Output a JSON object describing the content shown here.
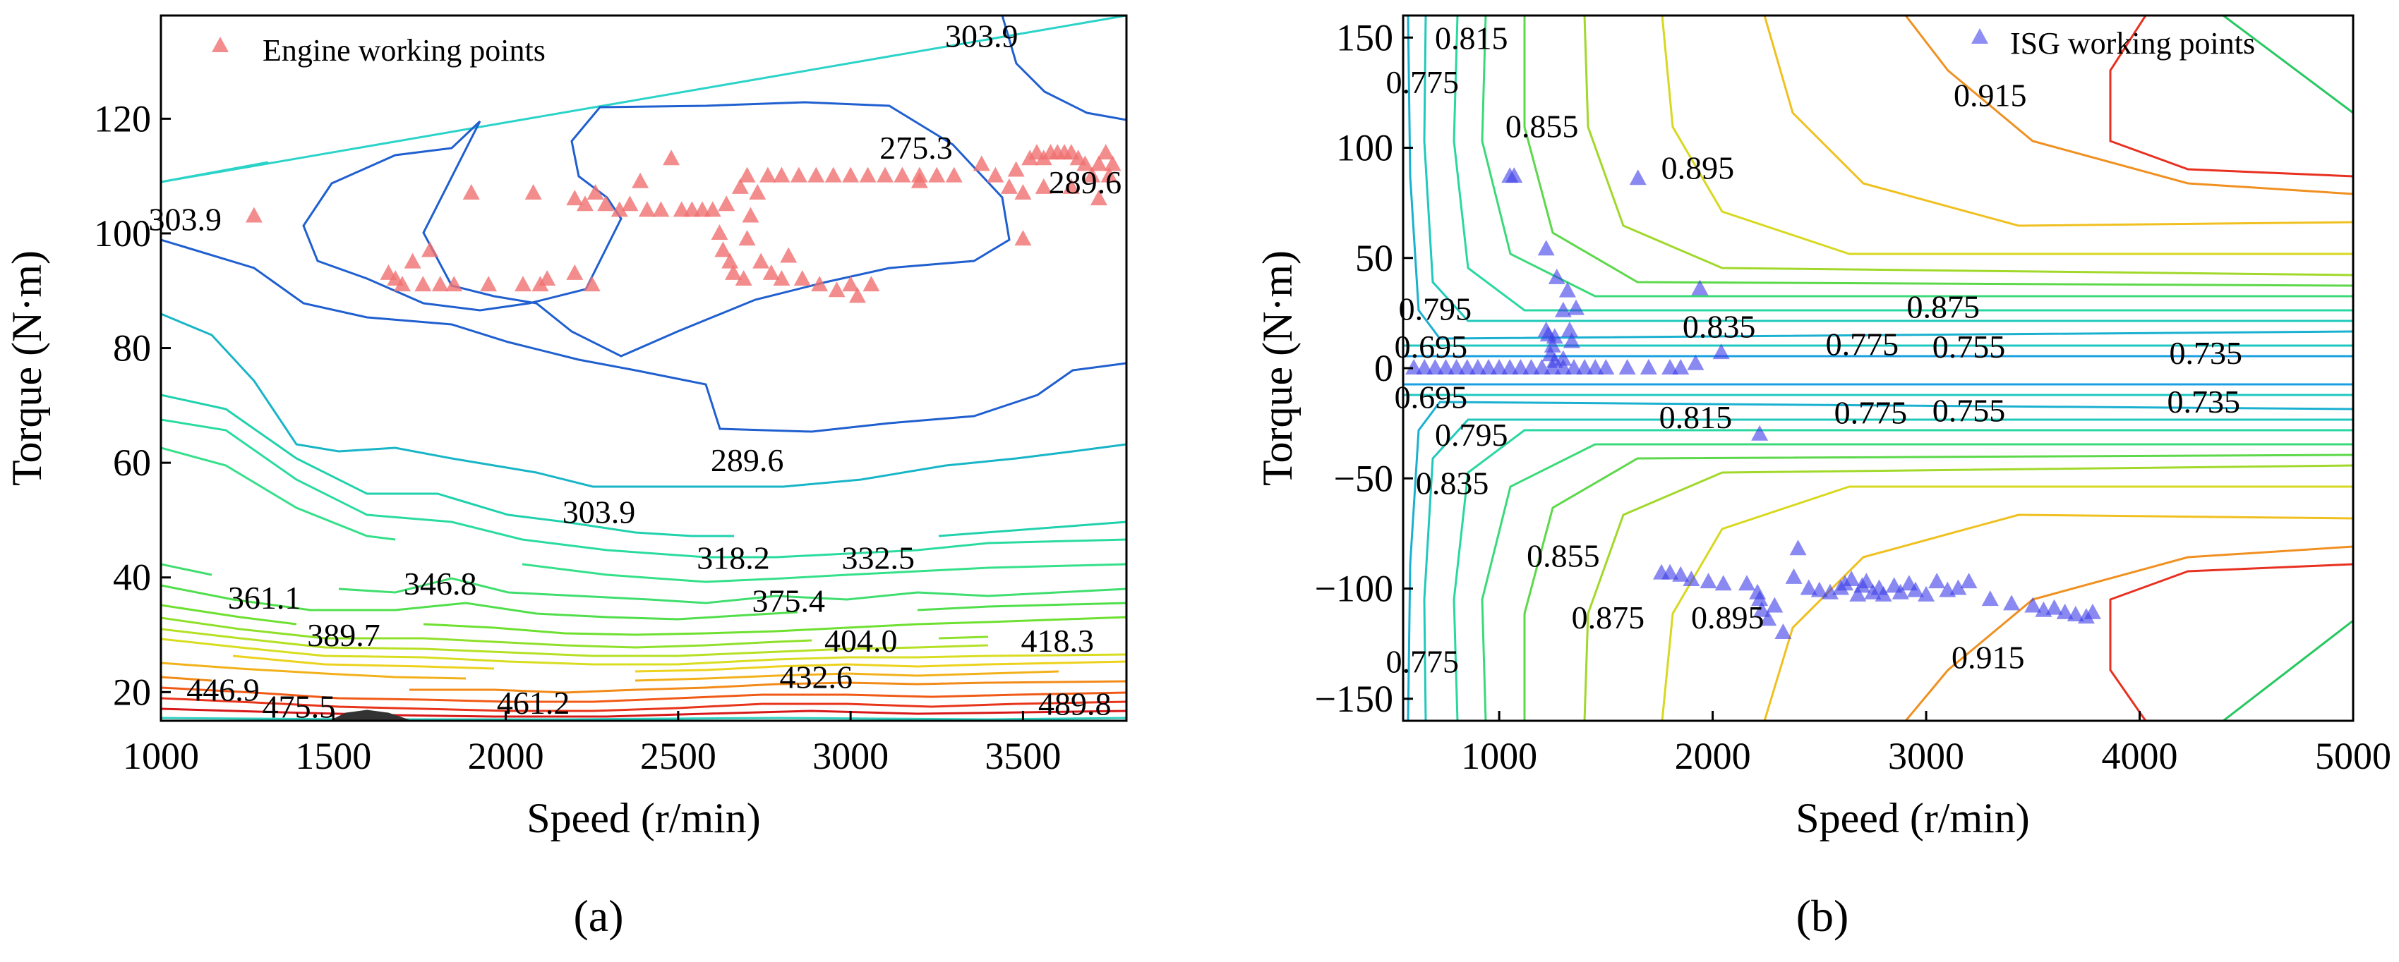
{
  "chart_data": [
    {
      "panel": "(a)",
      "type": "contour+scatter",
      "xlabel": "Speed (r/min)",
      "ylabel": "Torque (N·m)",
      "xlim": [
        1000,
        3800
      ],
      "ylim": [
        15,
        138
      ],
      "xticks": [
        1000,
        1500,
        2000,
        2500,
        3000,
        3500
      ],
      "yticks": [
        20,
        40,
        60,
        80,
        100,
        120
      ],
      "legend": {
        "label": "Engine working points",
        "position": "top-left",
        "marker": "triangle",
        "color": "#f07070"
      },
      "contour_levels": [
        "275.3",
        "289.6",
        "303.9",
        "318.2",
        "332.5",
        "346.8",
        "361.1",
        "375.4",
        "389.7",
        "404.0",
        "418.3",
        "432.6",
        "446.9",
        "461.2",
        "475.5",
        "489.8"
      ],
      "contour_labels": [
        {
          "text": "303.9",
          "x": 3380,
          "y": 134.5
        },
        {
          "text": "275.3",
          "x": 3190,
          "y": 115
        },
        {
          "text": "289.6",
          "x": 3680,
          "y": 109
        },
        {
          "text": "303.9",
          "x": 1070,
          "y": 102.5
        },
        {
          "text": "289.6",
          "x": 2700,
          "y": 60.5
        },
        {
          "text": "303.9",
          "x": 2270,
          "y": 51.5
        },
        {
          "text": "318.2",
          "x": 2660,
          "y": 43.5
        },
        {
          "text": "332.5",
          "x": 3080,
          "y": 43.5
        },
        {
          "text": "361.1",
          "x": 1300,
          "y": 36.5
        },
        {
          "text": "346.8",
          "x": 1810,
          "y": 39
        },
        {
          "text": "375.4",
          "x": 2820,
          "y": 36
        },
        {
          "text": "389.7",
          "x": 1530,
          "y": 30
        },
        {
          "text": "404.0",
          "x": 3030,
          "y": 29
        },
        {
          "text": "418.3",
          "x": 3600,
          "y": 29
        },
        {
          "text": "432.6",
          "x": 2900,
          "y": 22.7
        },
        {
          "text": "446.9",
          "x": 1180,
          "y": 20.5
        },
        {
          "text": "475.5",
          "x": 1400,
          "y": 17.5
        },
        {
          "text": "461.2",
          "x": 2080,
          "y": 18.2
        },
        {
          "text": "489.8",
          "x": 3650,
          "y": 18
        }
      ],
      "series": [
        {
          "name": "Engine working points",
          "points": [
            [
              1270,
              103
            ],
            [
              1660,
              93
            ],
            [
              1680,
              92
            ],
            [
              1700,
              91
            ],
            [
              1730,
              95
            ],
            [
              1760,
              91
            ],
            [
              1780,
              97
            ],
            [
              1810,
              91
            ],
            [
              1850,
              91
            ],
            [
              1900,
              107
            ],
            [
              1950,
              91
            ],
            [
              2050,
              91
            ],
            [
              2100,
              91
            ],
            [
              2080,
              107
            ],
            [
              2120,
              92
            ],
            [
              2200,
              93
            ],
            [
              2250,
              91
            ],
            [
              2200,
              106
            ],
            [
              2230,
              105
            ],
            [
              2260,
              107
            ],
            [
              2290,
              105
            ],
            [
              2330,
              104
            ],
            [
              2360,
              105
            ],
            [
              2390,
              109
            ],
            [
              2410,
              104
            ],
            [
              2450,
              104
            ],
            [
              2480,
              113
            ],
            [
              2510,
              104
            ],
            [
              2540,
              104
            ],
            [
              2570,
              104
            ],
            [
              2600,
              104
            ],
            [
              2640,
              105
            ],
            [
              2620,
              100
            ],
            [
              2630,
              97
            ],
            [
              2650,
              95
            ],
            [
              2660,
              93
            ],
            [
              2690,
              92
            ],
            [
              2700,
              99
            ],
            [
              2710,
              103
            ],
            [
              2740,
              95
            ],
            [
              2770,
              93
            ],
            [
              2800,
              92
            ],
            [
              2820,
              96
            ],
            [
              2860,
              92
            ],
            [
              2910,
              91
            ],
            [
              2960,
              90
            ],
            [
              3000,
              91
            ],
            [
              3020,
              89
            ],
            [
              3060,
              91
            ],
            [
              2680,
              108
            ],
            [
              2700,
              110
            ],
            [
              2730,
              107
            ],
            [
              2760,
              110
            ],
            [
              2800,
              110
            ],
            [
              2850,
              110
            ],
            [
              2900,
              110
            ],
            [
              2950,
              110
            ],
            [
              3000,
              110
            ],
            [
              3050,
              110
            ],
            [
              3100,
              110
            ],
            [
              3150,
              110
            ],
            [
              3200,
              110
            ],
            [
              3250,
              110
            ],
            [
              3300,
              110
            ],
            [
              3200,
              109
            ],
            [
              3380,
              112
            ],
            [
              3420,
              110
            ],
            [
              3460,
              108
            ],
            [
              3480,
              111
            ],
            [
              3500,
              107
            ],
            [
              3520,
              113
            ],
            [
              3540,
              114
            ],
            [
              3560,
              113
            ],
            [
              3580,
              114
            ],
            [
              3600,
              114
            ],
            [
              3620,
              114
            ],
            [
              3640,
              114
            ],
            [
              3660,
              113
            ],
            [
              3680,
              112
            ],
            [
              3700,
              110
            ],
            [
              3720,
              112
            ],
            [
              3740,
              114
            ],
            [
              3750,
              110
            ],
            [
              3760,
              112
            ],
            [
              3720,
              106
            ],
            [
              3560,
              108
            ],
            [
              3640,
              108
            ],
            [
              3500,
              99
            ]
          ]
        }
      ]
    },
    {
      "panel": "(b)",
      "type": "contour+scatter",
      "xlabel": "Speed (r/min)",
      "ylabel": "Torque (N·m)",
      "xlim": [
        550,
        5000
      ],
      "ylim": [
        -160,
        160
      ],
      "xticks": [
        1000,
        2000,
        3000,
        4000,
        5000
      ],
      "yticks": [
        -150,
        -100,
        -50,
        0,
        50,
        100,
        150
      ],
      "legend": {
        "label": "ISG working points",
        "position": "top-right",
        "marker": "triangle",
        "color": "#7070f0"
      },
      "contour_levels": [
        "0.695",
        "0.735",
        "0.755",
        "0.775",
        "0.795",
        "0.815",
        "0.835",
        "0.855",
        "0.875",
        "0.895",
        "0.915"
      ],
      "contour_labels": [
        {
          "text": "0.815",
          "x": 870,
          "y": 150
        },
        {
          "text": "0.775",
          "x": 640,
          "y": 130
        },
        {
          "text": "0.855",
          "x": 1200,
          "y": 110
        },
        {
          "text": "0.895",
          "x": 1930,
          "y": 91
        },
        {
          "text": "0.915",
          "x": 3300,
          "y": 124
        },
        {
          "text": "0.795",
          "x": 700,
          "y": 27
        },
        {
          "text": "0.875",
          "x": 3080,
          "y": 28
        },
        {
          "text": "0.835",
          "x": 2030,
          "y": 19
        },
        {
          "text": "0.695",
          "x": 680,
          "y": 10
        },
        {
          "text": "0.775",
          "x": 2700,
          "y": 11
        },
        {
          "text": "0.755",
          "x": 3200,
          "y": 10
        },
        {
          "text": "0.735",
          "x": 4310,
          "y": 7
        },
        {
          "text": "0.695",
          "x": 680,
          "y": -13
        },
        {
          "text": "0.815",
          "x": 1920,
          "y": -22
        },
        {
          "text": "0.775",
          "x": 2740,
          "y": -20
        },
        {
          "text": "0.755",
          "x": 3200,
          "y": -19
        },
        {
          "text": "0.735",
          "x": 4300,
          "y": -15
        },
        {
          "text": "0.795",
          "x": 870,
          "y": -30
        },
        {
          "text": "0.835",
          "x": 780,
          "y": -52
        },
        {
          "text": "0.855",
          "x": 1300,
          "y": -85
        },
        {
          "text": "0.875",
          "x": 1510,
          "y": -113
        },
        {
          "text": "0.895",
          "x": 2070,
          "y": -113
        },
        {
          "text": "0.915",
          "x": 3290,
          "y": -131
        },
        {
          "text": "0.775",
          "x": 640,
          "y": -133
        }
      ],
      "series": [
        {
          "name": "ISG working points",
          "points": [
            [
              1050,
              87
            ],
            [
              1070,
              87
            ],
            [
              1650,
              86
            ],
            [
              1220,
              54
            ],
            [
              1270,
              41
            ],
            [
              1320,
              35
            ],
            [
              1940,
              36
            ],
            [
              1300,
              26
            ],
            [
              1360,
              27
            ],
            [
              1220,
              17
            ],
            [
              1230,
              15
            ],
            [
              1260,
              14
            ],
            [
              1330,
              17
            ],
            [
              1250,
              10
            ],
            [
              1240,
              6
            ],
            [
              1260,
              3
            ],
            [
              1300,
              4
            ],
            [
              1340,
              12
            ],
            [
              2040,
              7
            ],
            [
              1920,
              2
            ],
            [
              600,
              0
            ],
            [
              650,
              0
            ],
            [
              700,
              0
            ],
            [
              750,
              0
            ],
            [
              800,
              0
            ],
            [
              850,
              0
            ],
            [
              900,
              0
            ],
            [
              950,
              0
            ],
            [
              1000,
              0
            ],
            [
              1050,
              0
            ],
            [
              1100,
              0
            ],
            [
              1150,
              0
            ],
            [
              1200,
              0
            ],
            [
              1250,
              0
            ],
            [
              1300,
              0
            ],
            [
              1350,
              0
            ],
            [
              1400,
              0
            ],
            [
              1450,
              0
            ],
            [
              1500,
              0
            ],
            [
              1600,
              0
            ],
            [
              1700,
              0
            ],
            [
              1800,
              0
            ],
            [
              1850,
              0
            ],
            [
              2220,
              -30
            ],
            [
              1760,
              -93
            ],
            [
              1800,
              -93
            ],
            [
              1850,
              -94
            ],
            [
              1900,
              -96
            ],
            [
              1980,
              -97
            ],
            [
              2050,
              -98
            ],
            [
              2160,
              -98
            ],
            [
              2210,
              -102
            ],
            [
              2220,
              -105
            ],
            [
              2230,
              -110
            ],
            [
              2260,
              -114
            ],
            [
              2290,
              -108
            ],
            [
              2330,
              -120
            ],
            [
              2400,
              -82
            ],
            [
              2380,
              -95
            ],
            [
              2450,
              -100
            ],
            [
              2500,
              -101
            ],
            [
              2550,
              -102
            ],
            [
              2600,
              -100
            ],
            [
              2620,
              -98
            ],
            [
              2650,
              -96
            ],
            [
              2680,
              -103
            ],
            [
              2700,
              -99
            ],
            [
              2720,
              -97
            ],
            [
              2750,
              -102
            ],
            [
              2780,
              -100
            ],
            [
              2800,
              -103
            ],
            [
              2850,
              -99
            ],
            [
              2880,
              -102
            ],
            [
              2920,
              -98
            ],
            [
              2950,
              -101
            ],
            [
              3000,
              -103
            ],
            [
              3050,
              -97
            ],
            [
              3100,
              -101
            ],
            [
              3150,
              -100
            ],
            [
              3200,
              -97
            ],
            [
              3300,
              -105
            ],
            [
              3400,
              -107
            ],
            [
              3500,
              -108
            ],
            [
              3550,
              -110
            ],
            [
              3600,
              -109
            ],
            [
              3650,
              -111
            ],
            [
              3700,
              -112
            ],
            [
              3750,
              -113
            ],
            [
              3780,
              -111
            ]
          ]
        }
      ]
    }
  ],
  "panel_labels": {
    "a": "(a)",
    "b": "(b)"
  }
}
